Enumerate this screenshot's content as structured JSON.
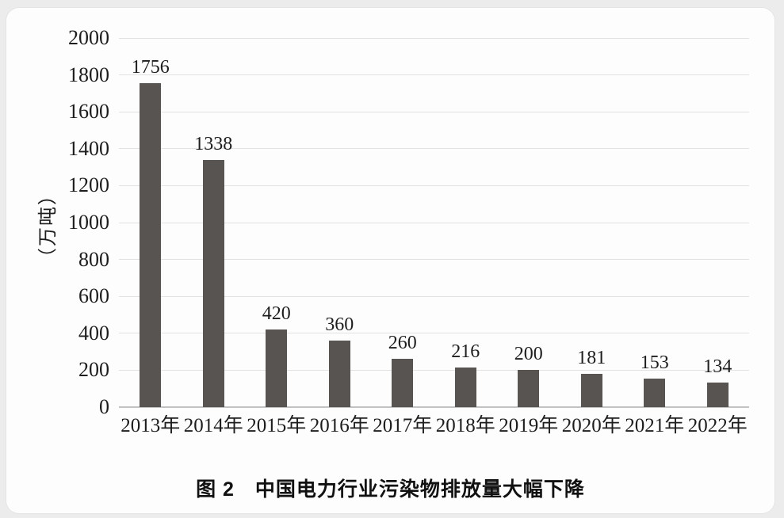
{
  "caption": "图 2　中国电力行业污染物排放量大幅下降",
  "chart_data": {
    "type": "bar",
    "title": "图 2 中国电力行业污染物排放量大幅下降",
    "categories": [
      "2013年",
      "2014年",
      "2015年",
      "2016年",
      "2017年",
      "2018年",
      "2019年",
      "2020年",
      "2021年",
      "2022年"
    ],
    "values": [
      1756,
      1338,
      420,
      360,
      260,
      216,
      200,
      181,
      153,
      134
    ],
    "data_labels": [
      "1756",
      "1338",
      "420",
      "360",
      "260",
      "216",
      "200",
      "181",
      "153",
      "134"
    ],
    "xlabel": "",
    "ylabel": "（万吨）",
    "ylim": [
      0,
      2000
    ],
    "ytick_step": 200,
    "ytick_labels": [
      "0",
      "200",
      "400",
      "600",
      "800",
      "1000",
      "1200",
      "1400",
      "1600",
      "1800",
      "2000"
    ],
    "grid": true,
    "legend": null,
    "bar_color": "#575452"
  },
  "colors": {
    "page_bg": "#ececec",
    "card_bg": "#fdfdfd",
    "bar": "#575452",
    "grid": "#e2e2e2",
    "axis_line": "#c2c2c2",
    "text": "#1d1d1d"
  }
}
